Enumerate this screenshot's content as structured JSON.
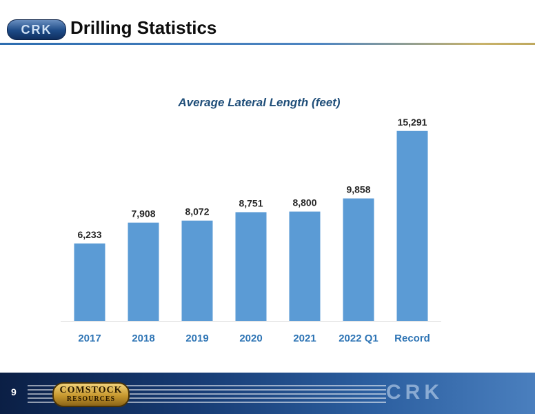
{
  "header": {
    "logo_text": "CRK",
    "title": "Drilling Statistics"
  },
  "chart_data": {
    "type": "bar",
    "title": "Average Lateral Length  (feet)",
    "categories": [
      "2017",
      "2018",
      "2019",
      "2020",
      "2021",
      "2022 Q1",
      "Record"
    ],
    "values": [
      6233,
      7908,
      8072,
      8751,
      8800,
      9858,
      15291
    ],
    "value_labels": [
      "6,233",
      "7,908",
      "8,072",
      "8,751",
      "8,800",
      "9,858",
      "15,291"
    ],
    "xlabel": "",
    "ylabel": "",
    "ylim": [
      0,
      16000
    ],
    "grid": false,
    "legend": "none",
    "colors": {
      "bar": "#5b9bd5",
      "category_label": "#2f75b5",
      "title": "#1f4e79",
      "value_label": "#262626",
      "axis": "#d9d9d9"
    }
  },
  "footer": {
    "page_number": "9",
    "left_logo_text_top": "COMSTOCK",
    "left_logo_text_bottom": "RESOURCES",
    "right_logo_text": "CRK"
  }
}
